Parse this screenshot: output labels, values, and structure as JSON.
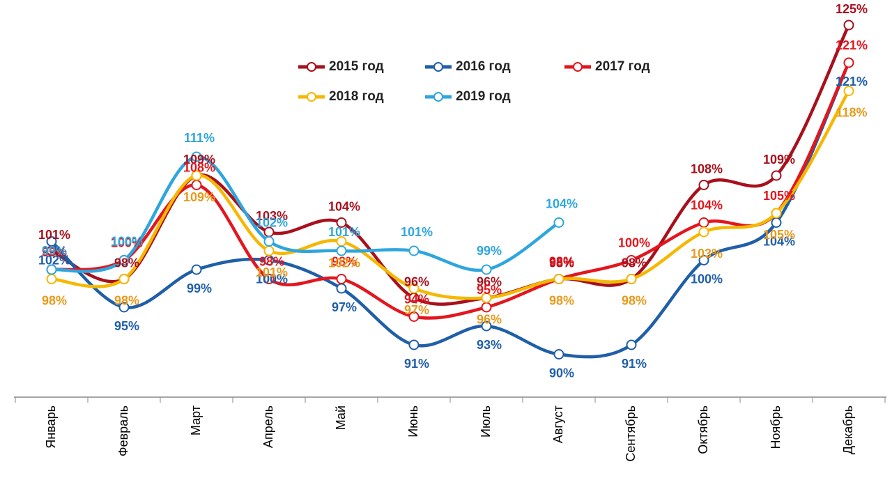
{
  "chart_data": {
    "type": "line",
    "categories": [
      "Январь",
      "Февраль",
      "Март",
      "Апрель",
      "Май",
      "Июнь",
      "Июль",
      "Август",
      "Сентябрь",
      "Октябрь",
      "Ноябрь",
      "Декабрь"
    ],
    "series": [
      {
        "name": "2015 год",
        "color": "#a8101c",
        "values": [
          101,
          98,
          109,
          103,
          104,
          96,
          96,
          98,
          98,
          108,
          109,
          125
        ],
        "value_labels": [
          "101%",
          "98%",
          "109%",
          "103%",
          "104%",
          "96%",
          "96%",
          "98%",
          "98%",
          "108%",
          "109%",
          "125%"
        ]
      },
      {
        "name": "2016 год",
        "color": "#1f5fa8",
        "values": [
          102,
          95,
          99,
          100,
          97,
          91,
          93,
          90,
          91,
          100,
          104,
          121
        ],
        "value_labels": [
          "102%",
          "95%",
          "99%",
          "100%",
          "97%",
          "91%",
          "93%",
          "90%",
          "91%",
          "100%",
          "104%",
          "121%"
        ]
      },
      {
        "name": "2017 год",
        "color": "#e3161e",
        "values": [
          99,
          100,
          108,
          98,
          98,
          94,
          95,
          98,
          100,
          104,
          105,
          121
        ],
        "value_labels": [
          "99%",
          "100%",
          "108%",
          "98%",
          "98%",
          "94%",
          "95%",
          "98%",
          "100%",
          "104%",
          "105%",
          "121%"
        ]
      },
      {
        "name": "2018 год",
        "color": "#f5b800",
        "values": [
          98,
          98,
          109,
          101,
          102,
          97,
          96,
          98,
          98,
          103,
          105,
          118
        ],
        "value_labels": [
          "98%",
          "98%",
          "109%",
          "101%",
          "102%",
          "97%",
          "96%",
          "98%",
          "98%",
          "103%",
          "105%",
          "118%"
        ]
      },
      {
        "name": "2019 год",
        "color": "#2ea6dd",
        "values": [
          99,
          100,
          111,
          102,
          101,
          101,
          99,
          104,
          null,
          null,
          null,
          null
        ],
        "value_labels": [
          "99%",
          "100%",
          "111%",
          "102%",
          "101%",
          "101%",
          "99%",
          "104%",
          null,
          null,
          null,
          null
        ]
      }
    ]
  }
}
